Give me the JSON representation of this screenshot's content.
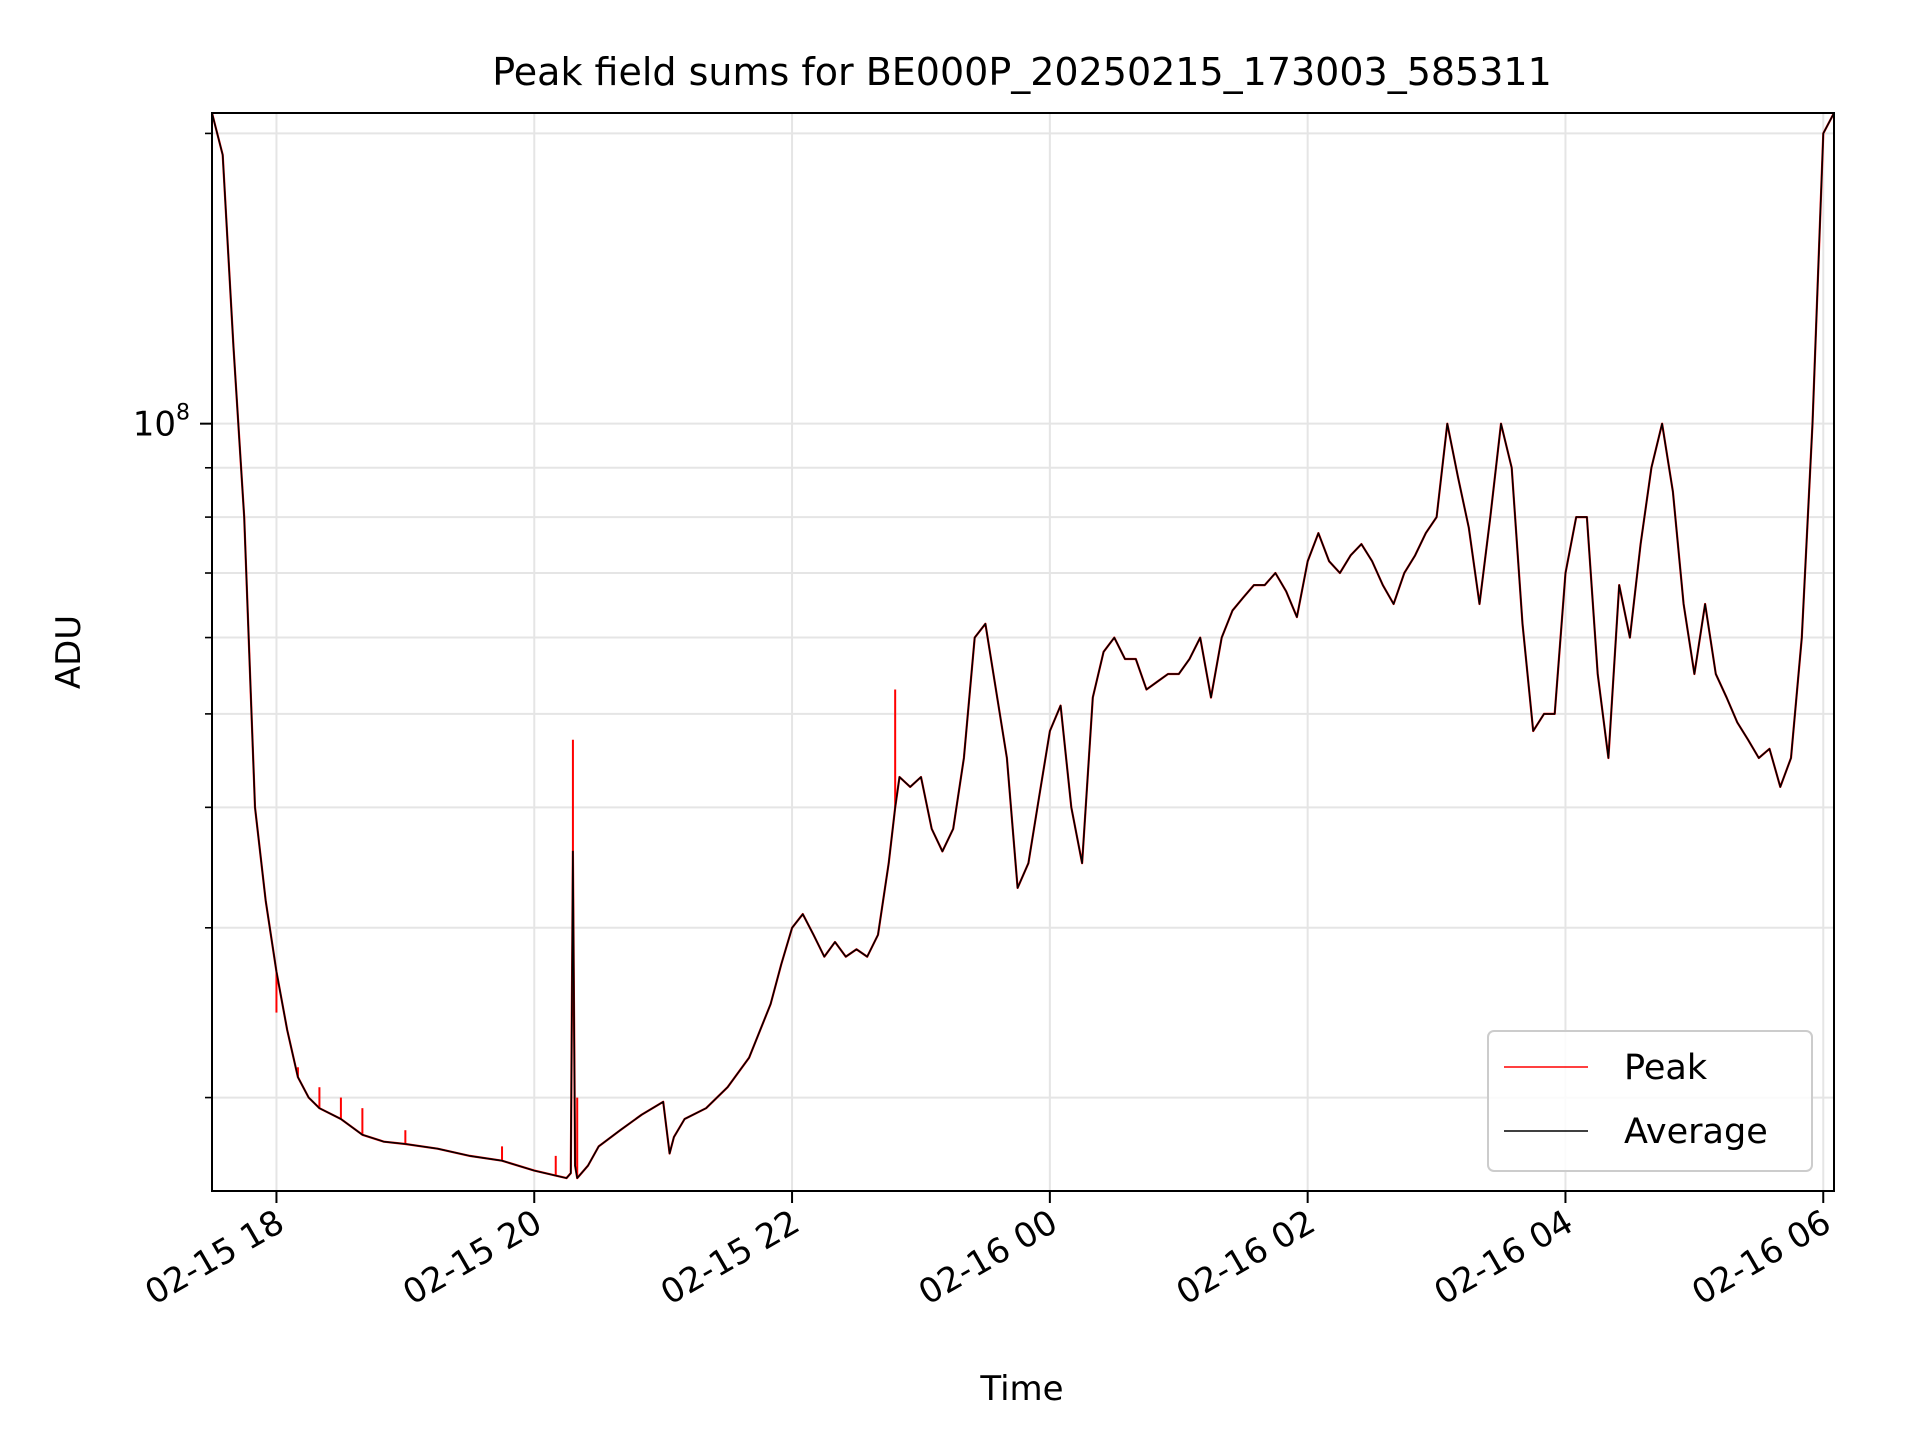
{
  "chart_data": {
    "type": "line",
    "title": "Peak field sums for BE000P_20250215_173003_585311",
    "xlabel": "Time",
    "ylabel": "ADU",
    "y_scale": "log",
    "x_range": [
      "2025-02-15 17:30",
      "2025-02-16 06:05"
    ],
    "y_range": [
      16000000,
      210000000
    ],
    "x_ticks": [
      {
        "t": "2025-02-15 18:00",
        "label": "02-15 18"
      },
      {
        "t": "2025-02-15 20:00",
        "label": "02-15 20"
      },
      {
        "t": "2025-02-15 22:00",
        "label": "02-15 22"
      },
      {
        "t": "2025-02-16 00:00",
        "label": "02-16 00"
      },
      {
        "t": "2025-02-16 02:00",
        "label": "02-16 02"
      },
      {
        "t": "2025-02-16 04:00",
        "label": "02-16 04"
      },
      {
        "t": "2025-02-16 06:00",
        "label": "02-16 06"
      }
    ],
    "y_major_ticks": [
      {
        "value": 100000000,
        "base": "10",
        "exponent": "8"
      }
    ],
    "y_minor_ticks": [
      20000000,
      30000000,
      40000000,
      50000000,
      60000000,
      70000000,
      80000000,
      90000000,
      200000000
    ],
    "grid": true,
    "legend_position": "bottom-right",
    "series": [
      {
        "name": "Peak",
        "color": "#ff0000"
      },
      {
        "name": "Average",
        "color": "#000000"
      }
    ],
    "average": {
      "x": [
        "2025-02-15 17:30",
        "2025-02-15 17:35",
        "2025-02-15 17:40",
        "2025-02-15 17:45",
        "2025-02-15 17:50",
        "2025-02-15 17:55",
        "2025-02-15 18:00",
        "2025-02-15 18:05",
        "2025-02-15 18:10",
        "2025-02-15 18:15",
        "2025-02-15 18:20",
        "2025-02-15 18:30",
        "2025-02-15 18:40",
        "2025-02-15 18:50",
        "2025-02-15 19:00",
        "2025-02-15 19:15",
        "2025-02-15 19:30",
        "2025-02-15 19:45",
        "2025-02-15 20:00",
        "2025-02-15 20:10",
        "2025-02-15 20:15",
        "2025-02-15 20:17",
        "2025-02-15 20:18",
        "2025-02-15 20:19",
        "2025-02-15 20:20",
        "2025-02-15 20:25",
        "2025-02-15 20:30",
        "2025-02-15 20:40",
        "2025-02-15 20:50",
        "2025-02-15 21:00",
        "2025-02-15 21:03",
        "2025-02-15 21:05",
        "2025-02-15 21:10",
        "2025-02-15 21:20",
        "2025-02-15 21:30",
        "2025-02-15 21:40",
        "2025-02-15 21:50",
        "2025-02-15 21:55",
        "2025-02-15 22:00",
        "2025-02-15 22:05",
        "2025-02-15 22:10",
        "2025-02-15 22:15",
        "2025-02-15 22:20",
        "2025-02-15 22:25",
        "2025-02-15 22:30",
        "2025-02-15 22:35",
        "2025-02-15 22:40",
        "2025-02-15 22:45",
        "2025-02-15 22:48",
        "2025-02-15 22:50",
        "2025-02-15 22:55",
        "2025-02-15 23:00",
        "2025-02-15 23:05",
        "2025-02-15 23:10",
        "2025-02-15 23:15",
        "2025-02-15 23:20",
        "2025-02-15 23:25",
        "2025-02-15 23:30",
        "2025-02-15 23:40",
        "2025-02-15 23:45",
        "2025-02-15 23:50",
        "2025-02-15 23:55",
        "2025-02-16 00:00",
        "2025-02-16 00:05",
        "2025-02-16 00:10",
        "2025-02-16 00:15",
        "2025-02-16 00:20",
        "2025-02-16 00:25",
        "2025-02-16 00:30",
        "2025-02-16 00:35",
        "2025-02-16 00:40",
        "2025-02-16 00:45",
        "2025-02-16 00:50",
        "2025-02-16 00:55",
        "2025-02-16 01:00",
        "2025-02-16 01:05",
        "2025-02-16 01:10",
        "2025-02-16 01:15",
        "2025-02-16 01:20",
        "2025-02-16 01:25",
        "2025-02-16 01:30",
        "2025-02-16 01:35",
        "2025-02-16 01:40",
        "2025-02-16 01:45",
        "2025-02-16 01:50",
        "2025-02-16 01:55",
        "2025-02-16 02:00",
        "2025-02-16 02:05",
        "2025-02-16 02:10",
        "2025-02-16 02:15",
        "2025-02-16 02:20",
        "2025-02-16 02:25",
        "2025-02-16 02:30",
        "2025-02-16 02:35",
        "2025-02-16 02:40",
        "2025-02-16 02:45",
        "2025-02-16 02:50",
        "2025-02-16 02:55",
        "2025-02-16 03:00",
        "2025-02-16 03:05",
        "2025-02-16 03:10",
        "2025-02-16 03:15",
        "2025-02-16 03:20",
        "2025-02-16 03:25",
        "2025-02-16 03:30",
        "2025-02-16 03:35",
        "2025-02-16 03:40",
        "2025-02-16 03:45",
        "2025-02-16 03:50",
        "2025-02-16 03:55",
        "2025-02-16 04:00",
        "2025-02-16 04:05",
        "2025-02-16 04:10",
        "2025-02-16 04:15",
        "2025-02-16 04:20",
        "2025-02-16 04:25",
        "2025-02-16 04:30",
        "2025-02-16 04:35",
        "2025-02-16 04:40",
        "2025-02-16 04:45",
        "2025-02-16 04:50",
        "2025-02-16 04:55",
        "2025-02-16 05:00",
        "2025-02-16 05:05",
        "2025-02-16 05:10",
        "2025-02-16 05:15",
        "2025-02-16 05:20",
        "2025-02-16 05:25",
        "2025-02-16 05:30",
        "2025-02-16 05:35",
        "2025-02-16 05:40",
        "2025-02-16 05:45",
        "2025-02-16 05:50",
        "2025-02-16 05:55",
        "2025-02-16 06:00",
        "2025-02-16 06:05"
      ],
      "y": [
        210000000,
        190000000,
        120000000,
        80000000,
        40000000,
        32000000,
        27000000,
        23500000,
        21000000,
        20000000,
        19500000,
        19000000,
        18300000,
        18000000,
        17900000,
        17700000,
        17400000,
        17200000,
        16800000,
        16600000,
        16500000,
        16700000,
        36000000,
        17000000,
        16500000,
        17000000,
        17800000,
        18500000,
        19200000,
        19800000,
        17500000,
        18200000,
        19000000,
        19500000,
        20500000,
        22000000,
        25000000,
        27500000,
        30000000,
        31000000,
        29500000,
        28000000,
        29000000,
        28000000,
        28500000,
        28000000,
        29500000,
        35000000,
        40000000,
        43000000,
        42000000,
        43000000,
        38000000,
        36000000,
        38000000,
        45000000,
        60000000,
        62000000,
        45000000,
        33000000,
        35000000,
        41000000,
        48000000,
        51000000,
        40000000,
        35000000,
        52000000,
        58000000,
        60000000,
        57000000,
        57000000,
        53000000,
        54000000,
        55000000,
        55000000,
        57000000,
        60000000,
        52000000,
        60000000,
        64000000,
        66000000,
        68000000,
        68000000,
        70000000,
        67000000,
        63000000,
        72000000,
        77000000,
        72000000,
        70000000,
        73000000,
        75000000,
        72000000,
        68000000,
        65000000,
        70000000,
        73000000,
        77000000,
        80000000,
        100000000,
        88000000,
        78000000,
        65000000,
        80000000,
        100000000,
        90000000,
        62000000,
        48000000,
        50000000,
        50000000,
        70000000,
        80000000,
        80000000,
        55000000,
        45000000,
        68000000,
        60000000,
        75000000,
        90000000,
        100000000,
        85000000,
        65000000,
        55000000,
        65000000,
        55000000,
        52000000,
        49000000,
        47000000,
        45000000,
        46000000,
        42000000,
        45000000,
        60000000,
        100000000,
        200000000,
        210000000
      ]
    },
    "peak_spikes": [
      {
        "x": "2025-02-15 18:00",
        "y": 24500000
      },
      {
        "x": "2025-02-15 18:10",
        "y": 21500000
      },
      {
        "x": "2025-02-15 18:20",
        "y": 20500000
      },
      {
        "x": "2025-02-15 18:30",
        "y": 20000000
      },
      {
        "x": "2025-02-15 18:40",
        "y": 19500000
      },
      {
        "x": "2025-02-15 19:00",
        "y": 18500000
      },
      {
        "x": "2025-02-15 19:45",
        "y": 17800000
      },
      {
        "x": "2025-02-15 20:10",
        "y": 17400000
      },
      {
        "x": "2025-02-15 20:18",
        "y": 47000000
      },
      {
        "x": "2025-02-15 20:20",
        "y": 20000000
      },
      {
        "x": "2025-02-15 22:48",
        "y": 53000000
      }
    ]
  },
  "legend": {
    "peak_label": "Peak",
    "average_label": "Average"
  }
}
